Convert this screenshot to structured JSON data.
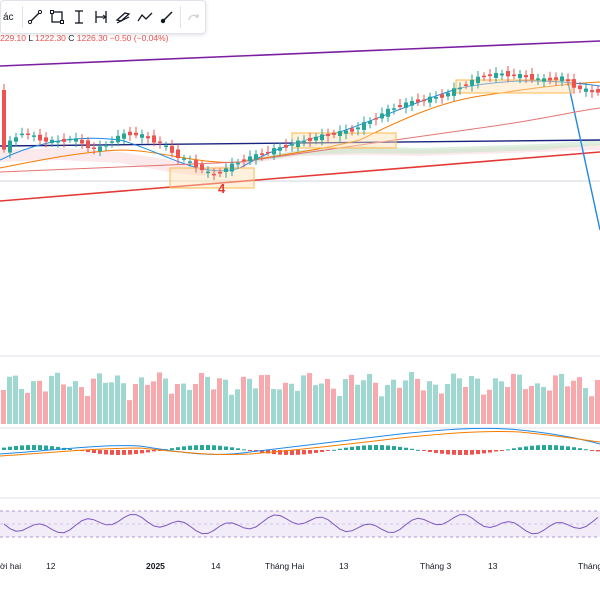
{
  "toolbar": {
    "cut_text": "ác",
    "tools": [
      "trend-line-icon",
      "rectangle-icon",
      "text-cursor-icon",
      "price-range-icon",
      "parallel-channel-icon",
      "path-icon",
      "brush-icon",
      "redo-icon"
    ]
  },
  "ohlc": {
    "high_partial": "229.10",
    "low_label": "L",
    "low": "1222.30",
    "close_label": "C",
    "close": "1226.30",
    "change": "−0.50 (−0.04%)"
  },
  "wave_label": "4",
  "x_axis": {
    "labels": [
      "ời hai",
      "12",
      "2025",
      "14",
      "Tháng Hai",
      "13",
      "Tháng 3",
      "13",
      "Tháng"
    ]
  },
  "colors": {
    "up": "#26a69a",
    "down": "#ef5350",
    "volume_up": "#9fd8d0",
    "volume_down": "#f7a9ae",
    "purple_line": "#7b1fa2",
    "navy_line": "#1a237e",
    "red_line": "#e53935",
    "blue_line": "#1e88e5"
  }
}
